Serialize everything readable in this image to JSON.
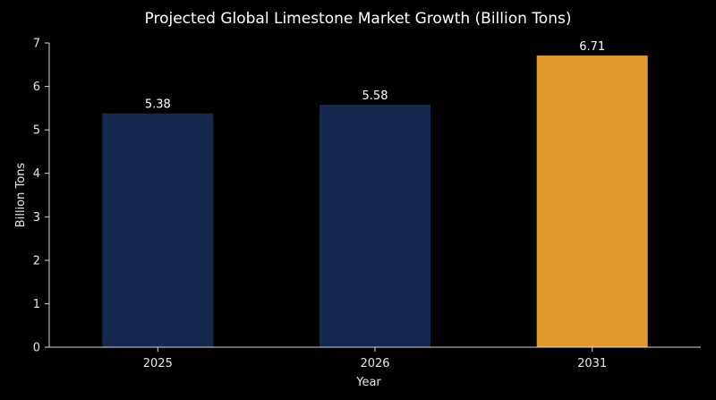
{
  "chart_data": {
    "type": "bar",
    "title": "Projected Global Limestone Market Growth (Billion Tons)",
    "xlabel": "Year",
    "ylabel": "Billion Tons",
    "categories": [
      "2025",
      "2026",
      "2031"
    ],
    "values": [
      5.38,
      5.58,
      6.71
    ],
    "data_labels": [
      "5.38",
      "5.58",
      "6.71"
    ],
    "bar_colors": [
      "#142850",
      "#142850",
      "#E39A2C"
    ],
    "ylim": [
      0,
      7
    ],
    "yticks": [
      0,
      1,
      2,
      3,
      4,
      5,
      6,
      7
    ],
    "grid": false,
    "legend": "none"
  }
}
